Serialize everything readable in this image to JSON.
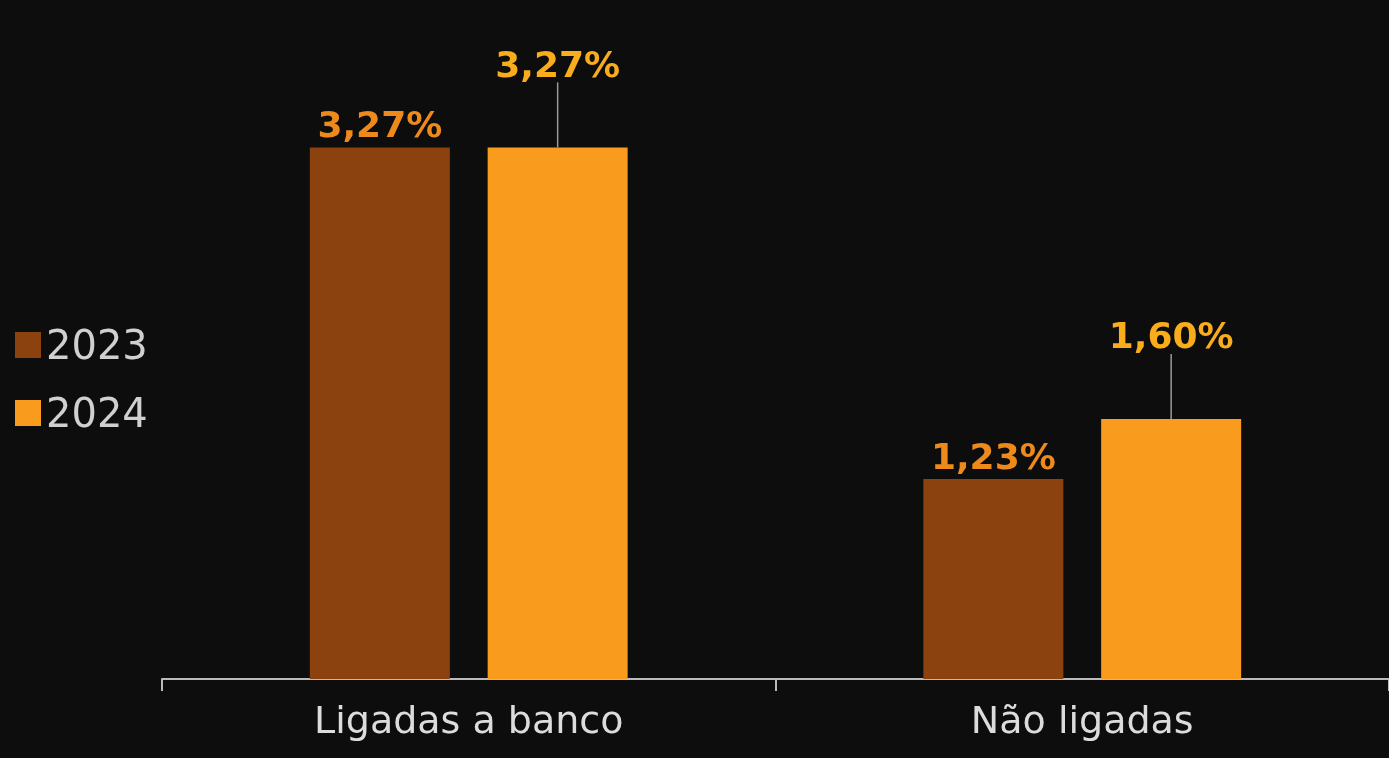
{
  "chart_data": {
    "type": "bar",
    "categories": [
      "Ligadas a banco",
      "Não ligadas"
    ],
    "series": [
      {
        "name": "2023",
        "color": "#8b420e",
        "values": [
          3.27,
          1.23
        ],
        "value_labels": [
          "3,27%",
          "1,23%"
        ]
      },
      {
        "name": "2024",
        "color": "#f99b1c",
        "values": [
          3.27,
          1.6
        ],
        "value_labels": [
          "3,27%",
          "1,60%"
        ]
      }
    ],
    "legend": "left",
    "grid": false
  }
}
